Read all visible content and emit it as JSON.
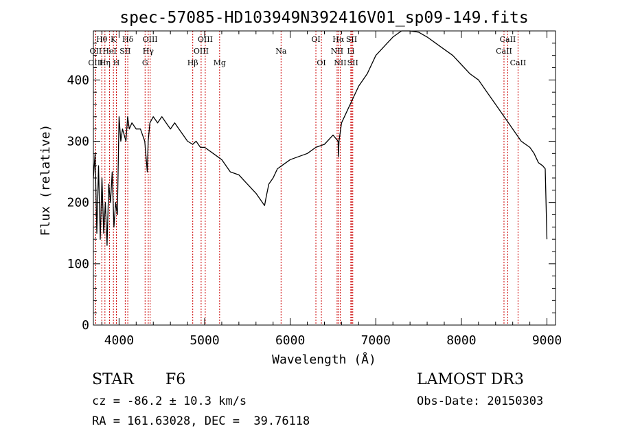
{
  "chart_data": {
    "type": "line",
    "title": "spec-57085-HD103949N392416V01_sp09-149.fits",
    "xlabel": "Wavelength (Å)",
    "ylabel": "Flux (relative)",
    "xlim": [
      3700,
      9100
    ],
    "ylim": [
      0,
      480
    ],
    "xticks": [
      4000,
      5000,
      6000,
      7000,
      8000,
      9000
    ],
    "yticks": [
      0,
      100,
      200,
      300,
      400
    ],
    "colors": {
      "line": "#000000",
      "marker": "#cc0000"
    },
    "series": [
      {
        "name": "flux",
        "x": [
          3700,
          3720,
          3740,
          3760,
          3780,
          3800,
          3820,
          3840,
          3860,
          3880,
          3900,
          3920,
          3940,
          3960,
          3980,
          4000,
          4020,
          4040,
          4060,
          4080,
          4100,
          4120,
          4150,
          4200,
          4250,
          4300,
          4330,
          4340,
          4360,
          4400,
          4450,
          4500,
          4550,
          4600,
          4650,
          4700,
          4750,
          4800,
          4860,
          4900,
          4950,
          5000,
          5100,
          5200,
          5300,
          5400,
          5500,
          5600,
          5700,
          5720,
          5750,
          5800,
          5850,
          5900,
          6000,
          6100,
          6200,
          6300,
          6400,
          6500,
          6560,
          6563,
          6570,
          6600,
          6700,
          6800,
          6900,
          7000,
          7100,
          7200,
          7300,
          7400,
          7500,
          7600,
          7700,
          7800,
          7900,
          8000,
          8100,
          8200,
          8300,
          8400,
          8500,
          8550,
          8600,
          8650,
          8700,
          8750,
          8800,
          8850,
          8900,
          8950,
          8980,
          9000
        ],
        "values": [
          240,
          280,
          150,
          260,
          140,
          240,
          150,
          200,
          130,
          230,
          200,
          250,
          160,
          200,
          180,
          340,
          300,
          320,
          310,
          300,
          340,
          320,
          330,
          320,
          320,
          300,
          250,
          300,
          330,
          340,
          330,
          340,
          330,
          320,
          330,
          320,
          310,
          300,
          295,
          300,
          290,
          290,
          280,
          270,
          250,
          245,
          230,
          215,
          195,
          210,
          230,
          240,
          255,
          260,
          270,
          275,
          280,
          290,
          295,
          310,
          300,
          275,
          300,
          330,
          360,
          390,
          410,
          440,
          455,
          470,
          480,
          480,
          478,
          470,
          460,
          450,
          440,
          425,
          410,
          400,
          380,
          360,
          340,
          330,
          320,
          310,
          300,
          295,
          290,
          280,
          265,
          260,
          255,
          140
        ]
      }
    ],
    "lines": [
      {
        "label": "Hθ",
        "wavelength": 3798,
        "row": 1
      },
      {
        "label": "OII",
        "wavelength": 3727,
        "row": 2
      },
      {
        "label": "OIII",
        "wavelength": 3727,
        "row": 3
      },
      {
        "label": "Hη",
        "wavelength": 3835,
        "row": 3
      },
      {
        "label": "HeI",
        "wavelength": 3889,
        "row": 2
      },
      {
        "label": "K",
        "wavelength": 3934,
        "row": 1
      },
      {
        "label": "H",
        "wavelength": 3969,
        "row": 3
      },
      {
        "label": "Hδ",
        "wavelength": 4102,
        "row": 1
      },
      {
        "label": "SII",
        "wavelength": 4072,
        "row": 2
      },
      {
        "label": "OIII",
        "wavelength": 4363,
        "row": 1
      },
      {
        "label": "Hγ",
        "wavelength": 4341,
        "row": 2
      },
      {
        "label": "G",
        "wavelength": 4304,
        "row": 3
      },
      {
        "label": "Hβ",
        "wavelength": 4861,
        "row": 3
      },
      {
        "label": "OIII",
        "wavelength": 5007,
        "row": 1
      },
      {
        "label": "OIII",
        "wavelength": 4959,
        "row": 2
      },
      {
        "label": "Mg",
        "wavelength": 5175,
        "row": 3
      },
      {
        "label": "Na",
        "wavelength": 5893,
        "row": 2
      },
      {
        "label": "OI",
        "wavelength": 6300,
        "row": 1
      },
      {
        "label": "OI",
        "wavelength": 6364,
        "row": 3
      },
      {
        "label": "Hα",
        "wavelength": 6563,
        "row": 1
      },
      {
        "label": "NII",
        "wavelength": 6548,
        "row": 2
      },
      {
        "label": "NII",
        "wavelength": 6584,
        "row": 3
      },
      {
        "label": "SII",
        "wavelength": 6717,
        "row": 1
      },
      {
        "label": "Li",
        "wavelength": 6708,
        "row": 2
      },
      {
        "label": "SII",
        "wavelength": 6731,
        "row": 3
      },
      {
        "label": "CaII",
        "wavelength": 8542,
        "row": 1
      },
      {
        "label": "CaII",
        "wavelength": 8498,
        "row": 2
      },
      {
        "label": "CaII",
        "wavelength": 8662,
        "row": 3
      }
    ]
  },
  "info": {
    "class": "STAR",
    "subclass": "F6",
    "survey": "LAMOST DR3",
    "cz": "cz = -86.2 ± 10.3 km/s",
    "obs_date": "Obs-Date: 20150303",
    "radec": "RA = 161.63028, DEC =  39.76118"
  }
}
